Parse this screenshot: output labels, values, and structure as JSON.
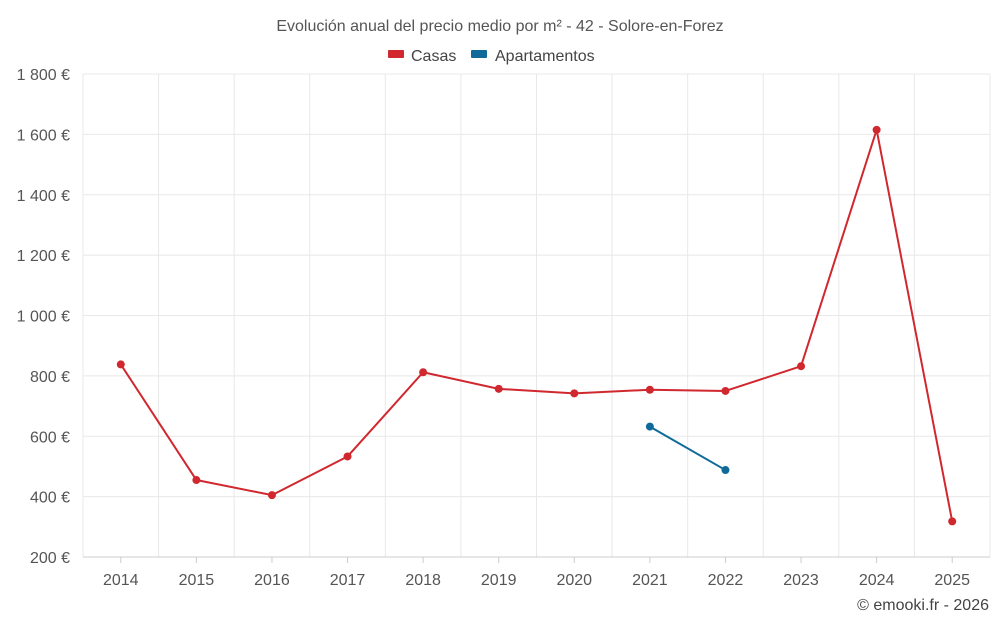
{
  "chart_data": {
    "type": "line",
    "title": "Evolución anual del precio medio por m² - 42 - Solore-en-Forez",
    "categories": [
      "2014",
      "2015",
      "2016",
      "2017",
      "2018",
      "2019",
      "2020",
      "2021",
      "2022",
      "2023",
      "2024",
      "2025"
    ],
    "series": [
      {
        "name": "Casas",
        "color": "#d0282e",
        "values": [
          838,
          455,
          405,
          533,
          812,
          757,
          742,
          754,
          750,
          832,
          1615,
          318
        ]
      },
      {
        "name": "Apartamentos",
        "color": "#0f6a9a",
        "values": [
          null,
          null,
          null,
          null,
          null,
          null,
          null,
          632,
          488,
          null,
          null,
          null
        ]
      }
    ],
    "ylim": [
      200,
      1800
    ],
    "yticks": [
      200,
      400,
      600,
      800,
      1000,
      1200,
      1400,
      1600,
      1800
    ],
    "ytick_labels": [
      "200 €",
      "400 €",
      "600 €",
      "800 €",
      "1 000 €",
      "1 200 €",
      "1 400 €",
      "1 600 €",
      "1 800 €"
    ],
    "grid": true,
    "legend_position": "top-center"
  },
  "credit": "© emooki.fr - 2026"
}
